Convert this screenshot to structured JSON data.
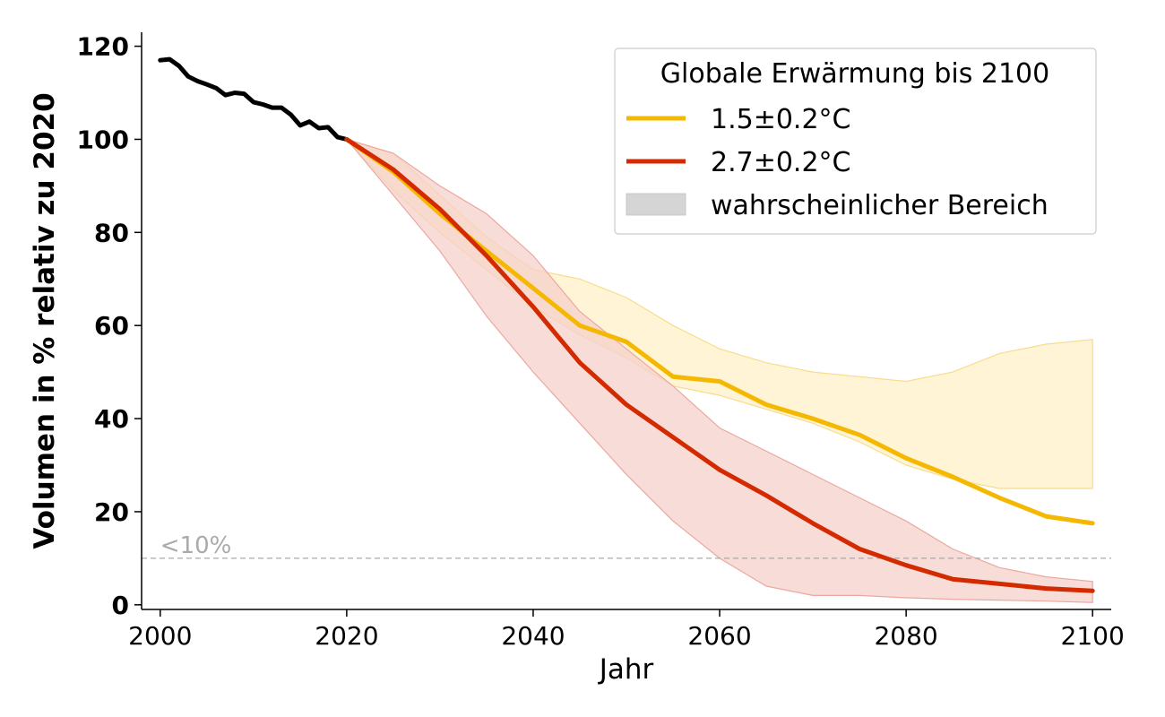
{
  "chart_data": {
    "type": "line",
    "title": "",
    "xlabel": "Jahr",
    "ylabel": "Volumen in % relativ zu 2020",
    "xlim": [
      1998,
      2102
    ],
    "ylim": [
      -1,
      123
    ],
    "xticks": [
      2000,
      2020,
      2040,
      2060,
      2080,
      2100
    ],
    "yticks": [
      0,
      20,
      40,
      60,
      80,
      100,
      120
    ],
    "grid": false,
    "legend": {
      "title": "Globale Erwärmung bis 2100",
      "placement": "top-right"
    },
    "threshold": {
      "y": 10,
      "label": "<10%",
      "color": "#aaaaaa"
    },
    "series": [
      {
        "name": "",
        "kind": "historical",
        "color": "#000000",
        "x": [
          2000,
          2001,
          2002,
          2003,
          2004,
          2005,
          2006,
          2007,
          2008,
          2009,
          2010,
          2011,
          2012,
          2013,
          2014,
          2015,
          2016,
          2017,
          2018,
          2019,
          2020
        ],
        "y": [
          117,
          117.2,
          115.8,
          113.5,
          112.5,
          111.8,
          111,
          109.5,
          110,
          109.8,
          108,
          107.5,
          106.8,
          106.8,
          105.3,
          103,
          103.8,
          102.4,
          102.6,
          100.5,
          100
        ]
      },
      {
        "name": "1.5±0.2°C",
        "color": "#f5b800",
        "band_color": "#fff0c8",
        "band_edge": "#f8dc8c",
        "x": [
          2020,
          2025,
          2030,
          2035,
          2040,
          2045,
          2050,
          2055,
          2060,
          2065,
          2070,
          2075,
          2080,
          2085,
          2090,
          2095,
          2100
        ],
        "y": [
          100,
          93,
          84,
          76,
          68,
          60,
          56.5,
          49,
          48,
          43,
          40,
          36.5,
          31.5,
          27.5,
          23,
          19,
          17.5
        ],
        "lower": [
          100,
          89,
          80,
          72,
          64,
          58,
          53,
          47,
          45,
          42,
          39,
          35,
          30,
          27,
          25,
          25,
          25
        ],
        "upper": [
          100,
          97,
          88,
          79,
          72,
          70,
          66,
          60,
          55,
          52,
          50,
          49,
          48,
          50,
          54,
          56,
          57
        ]
      },
      {
        "name": "2.7±0.2°C",
        "color": "#d42a00",
        "band_color": "#f6d0ca",
        "band_edge": "#eba8a0",
        "x": [
          2020,
          2025,
          2030,
          2035,
          2040,
          2045,
          2050,
          2055,
          2060,
          2065,
          2070,
          2075,
          2080,
          2085,
          2090,
          2095,
          2100
        ],
        "y": [
          100,
          93.5,
          85,
          75,
          64,
          52,
          43,
          36,
          29,
          23.5,
          17.5,
          12,
          8.5,
          5.5,
          4.5,
          3.5,
          3
        ],
        "lower": [
          100,
          88,
          76,
          62,
          50,
          39,
          28,
          18,
          10,
          4,
          2,
          2,
          1.5,
          1.2,
          1,
          0.8,
          0.5
        ],
        "upper": [
          100,
          97,
          90,
          84,
          75,
          63,
          55,
          47,
          38,
          33,
          28,
          23,
          18,
          12,
          8,
          6,
          5
        ]
      },
      {
        "name": "wahrscheinlicher Bereich",
        "kind": "legend-only",
        "color": "#d5d5d5"
      }
    ]
  }
}
